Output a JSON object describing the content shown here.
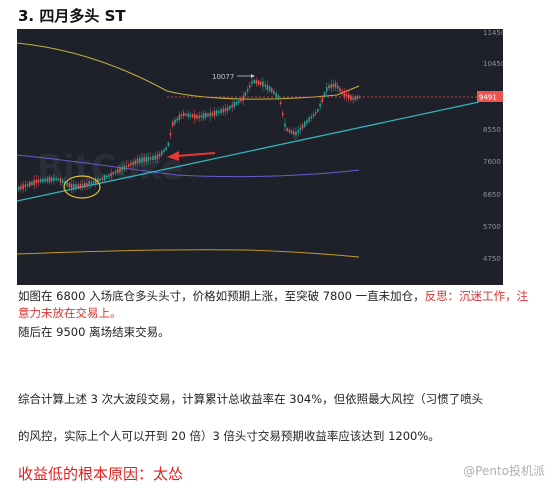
{
  "heading": "3. 四月多头 ST",
  "chart": {
    "price_axis_labels": [
      "11450",
      "10450",
      "9491",
      "8550",
      "7600",
      "6650",
      "5700",
      "4750"
    ],
    "current_price": "9491",
    "annotation_high": "10077",
    "watermark": "BitCoke",
    "colors": {
      "background": "#1e2129",
      "up": "#26a69a",
      "down": "#ef5350",
      "trendline": "#2fb5c0",
      "ma_yellow": "#c8b23a",
      "ma_purple": "#6a5acd",
      "ma_orange": "#c49a2a",
      "price_tag": "#ef5350",
      "arrow": "#e53935",
      "circle": "#e0c030"
    }
  },
  "paragraph1": {
    "text": "如图在 6800 入场底仓多头头寸，价格如预期上涨，至突破 7800 一直未加仓，",
    "reflection": "反思：沉迷工作，注意力未放在交易上。"
  },
  "paragraph2": "随后在 9500 离场结束交易。",
  "paragraph3": "综合计算上述 3 次大波段交易，计算累计总收益率在 304%，但依照最大风控（习惯了喷头",
  "paragraph4": "的风控，实际上个人可以开到 20 倍）3 倍头寸交易预期收益率应该达到 1200%。",
  "conclusion": "收益低的根本原因：太怂",
  "watermark": "@Pento投机派"
}
